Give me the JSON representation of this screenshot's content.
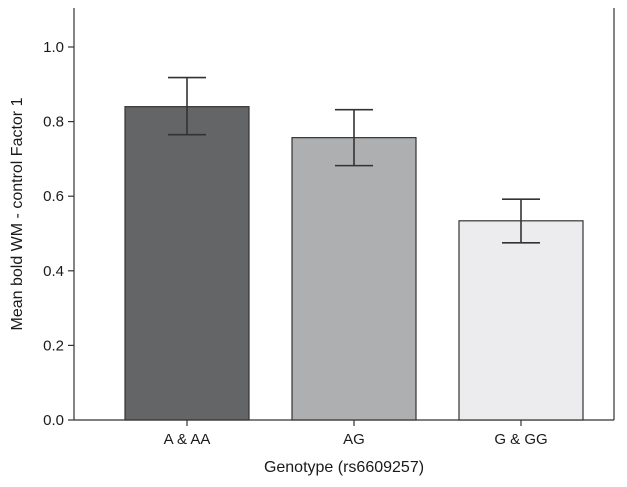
{
  "chart_data": {
    "type": "bar",
    "categories": [
      "A & AA",
      "AG",
      "G & GG"
    ],
    "values": [
      0.84,
      0.757,
      0.534
    ],
    "errors": [
      {
        "low": 0.765,
        "high": 0.918
      },
      {
        "low": 0.682,
        "high": 0.832
      },
      {
        "low": 0.475,
        "high": 0.592
      }
    ],
    "bar_colors": [
      "#646566",
      "#aeafb1",
      "#ececee"
    ],
    "title": "",
    "xlabel": "Genotype (rs6609257)",
    "ylabel": "Mean bold WM - control Factor 1",
    "ylim": [
      0,
      1.1
    ],
    "yticks": [
      0.0,
      0.2,
      0.4,
      0.6,
      0.8,
      1.0
    ],
    "ytick_labels": [
      "0.0",
      "0.2",
      "0.4",
      "0.6",
      "0.8",
      "1.0"
    ],
    "grid": false,
    "legend": "none",
    "frame_color": "#333333"
  }
}
